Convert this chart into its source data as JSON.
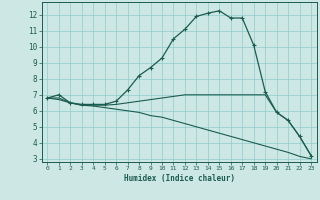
{
  "xlabel": "Humidex (Indice chaleur)",
  "background_color": "#cde8e4",
  "grid_color": "#90cccc",
  "line_color": "#1a5c4e",
  "xlim": [
    -0.5,
    23.5
  ],
  "ylim": [
    2.8,
    12.8
  ],
  "yticks": [
    3,
    4,
    5,
    6,
    7,
    8,
    9,
    10,
    11,
    12
  ],
  "xticks": [
    0,
    1,
    2,
    3,
    4,
    5,
    6,
    7,
    8,
    9,
    10,
    11,
    12,
    13,
    14,
    15,
    16,
    17,
    18,
    19,
    20,
    21,
    22,
    23
  ],
  "line1_x": [
    0,
    1,
    2,
    3,
    4,
    5,
    6,
    7,
    8,
    9,
    10,
    11,
    12,
    13,
    14,
    15,
    16,
    17,
    18,
    19,
    20,
    21,
    22,
    23
  ],
  "line1_y": [
    6.8,
    7.0,
    6.5,
    6.4,
    6.4,
    6.4,
    6.6,
    7.3,
    8.2,
    8.7,
    9.3,
    10.5,
    11.1,
    11.9,
    12.1,
    12.25,
    11.8,
    11.8,
    10.1,
    7.2,
    5.9,
    5.4,
    4.4,
    3.2
  ],
  "line2_x": [
    0,
    1,
    2,
    3,
    4,
    5,
    6,
    7,
    8,
    9,
    10,
    11,
    12,
    13,
    14,
    15,
    16,
    17,
    18,
    19,
    20,
    21,
    22,
    23
  ],
  "line2_y": [
    6.8,
    6.8,
    6.5,
    6.35,
    6.35,
    6.35,
    6.4,
    6.5,
    6.6,
    6.7,
    6.8,
    6.9,
    7.0,
    7.0,
    7.0,
    7.0,
    7.0,
    7.0,
    7.0,
    7.0,
    5.9,
    5.4,
    4.4,
    3.2
  ],
  "line3_x": [
    0,
    1,
    2,
    3,
    4,
    5,
    6,
    7,
    8,
    9,
    10,
    11,
    12,
    13,
    14,
    15,
    16,
    17,
    18,
    19,
    20,
    21,
    22,
    23
  ],
  "line3_y": [
    6.8,
    6.7,
    6.5,
    6.35,
    6.3,
    6.2,
    6.1,
    6.0,
    5.9,
    5.7,
    5.6,
    5.4,
    5.2,
    5.0,
    4.8,
    4.6,
    4.4,
    4.2,
    4.0,
    3.8,
    3.6,
    3.4,
    3.15,
    3.0
  ]
}
